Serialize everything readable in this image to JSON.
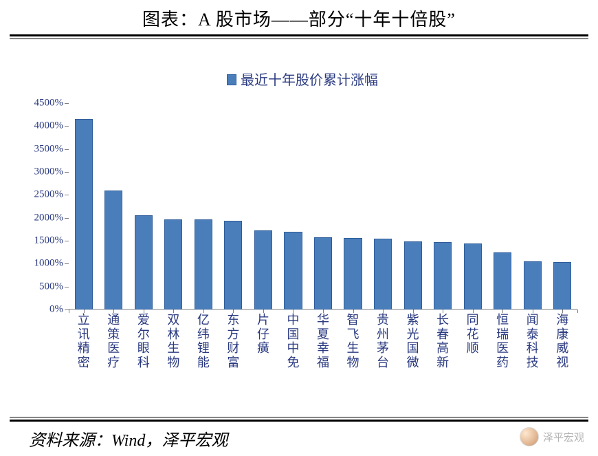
{
  "title": "图表：A 股市场——部分“十年十倍股”",
  "source_line": "资料来源：Wind，泽平宏观",
  "watermark": {
    "text": "泽平宏观"
  },
  "chart": {
    "type": "bar",
    "legend_label": "最近十年股价累计涨幅",
    "series_color": "#4a7ebb",
    "series_border_color": "#2f5d9a",
    "background_color": "#ffffff",
    "axis_color": "#808080",
    "label_color": "#2a3a80",
    "title_fontsize": 26,
    "legend_fontsize": 20,
    "xlabel_fontsize": 18,
    "ylabel_fontsize": 15,
    "y": {
      "min": 0,
      "max": 4500,
      "step": 500,
      "ticks": [
        0,
        500,
        1000,
        1500,
        2000,
        2500,
        3000,
        3500,
        4000,
        4500
      ],
      "format_suffix": "%"
    },
    "bar_width_ratio": 0.6,
    "categories": [
      "立讯精密",
      "通策医疗",
      "爱尔眼科",
      "双林生物",
      "亿纬锂能",
      "东方财富",
      "片仔癀",
      "中国中免",
      "华夏幸福",
      "智飞生物",
      "贵州茅台",
      "紫光国微",
      "长春高新",
      "同花顺",
      "恒瑞医药",
      "闻泰科技",
      "海康威视"
    ],
    "values": [
      4150,
      2600,
      2060,
      1970,
      1960,
      1940,
      1720,
      1700,
      1570,
      1560,
      1540,
      1480,
      1470,
      1440,
      1250,
      1050,
      1030
    ]
  }
}
